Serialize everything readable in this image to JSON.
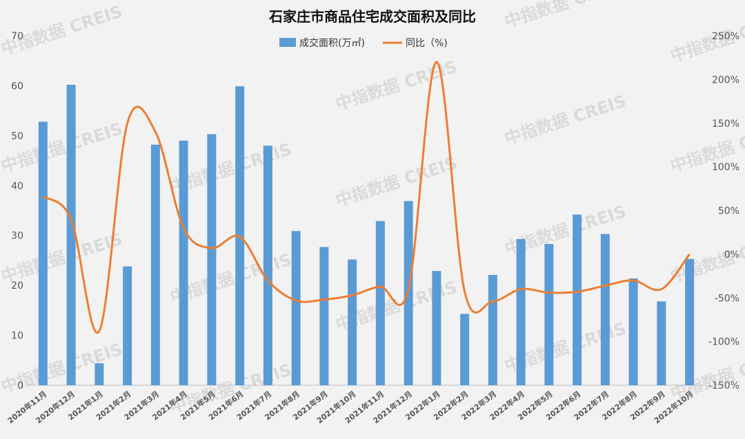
{
  "chart_data": {
    "type": "bar+line",
    "title": "石家庄市商品住宅成交面积及同比",
    "legend": [
      "成交面积(万㎡)",
      "同比（%)"
    ],
    "legend_position": "top-center",
    "categories": [
      "2020年11月",
      "2020年12月",
      "2021年1月",
      "2021年2月",
      "2021年3月",
      "2021年4月",
      "2021年5月",
      "2021年6月",
      "2021年7月",
      "2021年8月",
      "2021年9月",
      "2021年10月",
      "2021年11月",
      "2021年12月",
      "2022年1月",
      "2022年2月",
      "2022年3月",
      "2022年4月",
      "2022年5月",
      "2022年6月",
      "2022年7月",
      "2022年8月",
      "2022年9月",
      "2022年10月"
    ],
    "series": [
      {
        "name": "成交面积(万㎡)",
        "type": "bar",
        "axis": "left",
        "color": "#5b9bd5",
        "values": [
          52.8,
          60.2,
          4.4,
          23.8,
          48.2,
          49,
          50.3,
          59.9,
          48,
          30.9,
          27.7,
          25.2,
          32.9,
          36.9,
          22.9,
          14.3,
          22.1,
          29.3,
          28.3,
          34.2,
          30.3,
          21.4,
          16.8,
          25.3
        ]
      },
      {
        "name": "同比（%)",
        "type": "line",
        "axis": "right",
        "color": "#ed7d31",
        "values": [
          66,
          40,
          -88,
          150,
          140,
          30,
          7,
          20,
          -30,
          -53,
          -52,
          -47,
          -37,
          -40,
          220,
          -43,
          -54,
          -40,
          -44,
          -43,
          -36,
          -30,
          -40,
          0
        ]
      }
    ],
    "y_left": {
      "min": 0,
      "max": 70,
      "ticks": [
        0,
        10,
        20,
        30,
        40,
        50,
        60,
        70
      ]
    },
    "y_right": {
      "min": -150,
      "max": 250,
      "ticks": [
        "-150%",
        "-100%",
        "-50%",
        "0%",
        "50%",
        "100%",
        "150%",
        "200%",
        "250%"
      ]
    },
    "grid": false
  },
  "watermark": "中指数据 CREIS"
}
